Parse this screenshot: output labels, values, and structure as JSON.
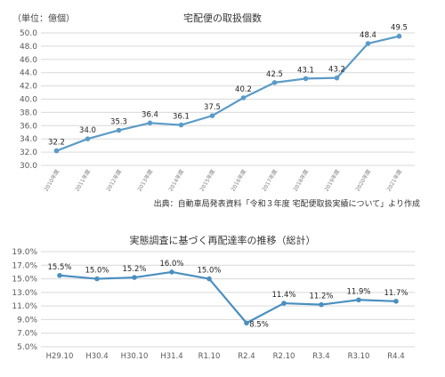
{
  "chart_data": [
    {
      "type": "line",
      "title": "宅配便の取扱個数",
      "unit_label": "（単位：億個）",
      "source_note": "出典：自動車局発表資料「令和３年度 宅配便取扱実績について」より作成",
      "categories": [
        "2010年度",
        "2011年度",
        "2012年度",
        "2013年度",
        "2014年度",
        "2015年度",
        "2016年度",
        "2017年度",
        "2018年度",
        "2019年度",
        "2020年度",
        "2021年度"
      ],
      "values": [
        32.2,
        34.0,
        35.3,
        36.4,
        36.1,
        37.5,
        40.2,
        42.5,
        43.1,
        43.2,
        48.4,
        49.5
      ],
      "value_labels": [
        "32.2",
        "34.0",
        "35.3",
        "36.4",
        "36.1",
        "37.5",
        "40.2",
        "42.5",
        "43.1",
        "43.2",
        "48.4",
        "49.5"
      ],
      "ylim": [
        30,
        50
      ],
      "yticks": [
        30,
        32,
        34,
        36,
        38,
        40,
        42,
        44,
        46,
        48,
        50
      ],
      "ytick_labels": [
        "30.0",
        "32.0",
        "34.0",
        "36.0",
        "38.0",
        "40.0",
        "42.0",
        "44.0",
        "46.0",
        "48.0",
        "50.0"
      ],
      "grid": true,
      "color": "#5b9bc8"
    },
    {
      "type": "line",
      "title": "実態調査に基づく再配達率の推移（総計）",
      "categories": [
        "H29.10",
        "H30.4",
        "H30.10",
        "H31.4",
        "R1.10",
        "R2.4",
        "R2.10",
        "R3.4",
        "R3.10",
        "R4.4"
      ],
      "values": [
        15.5,
        15.0,
        15.2,
        16.0,
        15.0,
        8.5,
        11.4,
        11.2,
        11.9,
        11.7
      ],
      "value_labels": [
        "15.5%",
        "15.0%",
        "15.2%",
        "16.0%",
        "15.0%",
        "8.5%",
        "11.4%",
        "11.2%",
        "11.9%",
        "11.7%"
      ],
      "ylim": [
        5,
        19
      ],
      "yticks": [
        5,
        7,
        9,
        11,
        13,
        15,
        17,
        19
      ],
      "ytick_labels": [
        "5.0%",
        "7.0%",
        "9.0%",
        "11.0%",
        "13.0%",
        "15.0%",
        "17.0%",
        "19.0%"
      ],
      "grid": true,
      "color": "#4a8fc0"
    }
  ]
}
